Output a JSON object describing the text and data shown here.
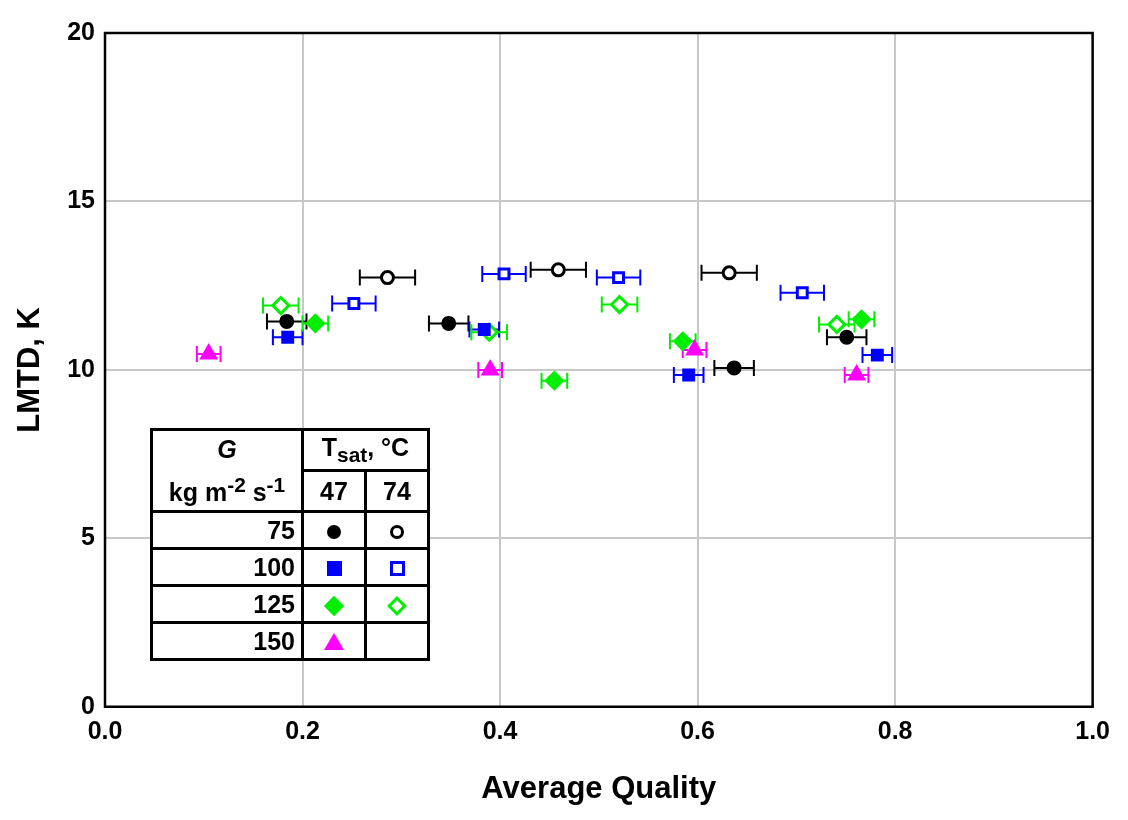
{
  "chart_data": {
    "type": "scatter",
    "xlabel": "Average Quality",
    "ylabel": "LMTD, K",
    "xlim": [
      0,
      1
    ],
    "xticks": [
      {
        "value": 0,
        "label": "0.0"
      },
      {
        "value": 0.2,
        "label": "0.2"
      },
      {
        "value": 0.4,
        "label": "0.4"
      },
      {
        "value": 0.6,
        "label": "0.6"
      },
      {
        "value": 0.8,
        "label": "0.8"
      },
      {
        "value": 1,
        "label": "1.0"
      }
    ],
    "ylim": [
      0,
      20
    ],
    "yticks": [
      0,
      5,
      10,
      15,
      20
    ],
    "grid": true,
    "annotations": [
      "G",
      "kg m$^{-2}$ s$^{-1}$",
      "T$_{sat}$, °C",
      "47",
      "74",
      "75",
      "100",
      "125",
      "150"
    ],
    "series": [
      {
        "color": "#000000",
        "marker": "circle",
        "x": [
          0.184,
          0.348,
          0.637,
          0.751
        ],
        "values": [
          11.44,
          11.38,
          10.06,
          10.97
        ],
        "xerrors": [
          0.02,
          0.02,
          0.02,
          0.02
        ]
      },
      {
        "color": "#000000",
        "marker": "circle-open",
        "x": [
          0.286,
          0.459,
          0.632
        ],
        "values": [
          12.74,
          12.97,
          12.88
        ],
        "xerrors": [
          0.028,
          0.028,
          0.028
        ]
      },
      {
        "color": "#0000ff",
        "marker": "square",
        "x": [
          0.185,
          0.384,
          0.591,
          0.782
        ],
        "values": [
          10.97,
          11.2,
          9.85,
          10.44
        ],
        "xerrors": [
          0.015,
          0.015,
          0.015,
          0.015
        ]
      },
      {
        "color": "#0000ff",
        "marker": "square-open",
        "x": [
          0.252,
          0.404,
          0.52,
          0.706
        ],
        "values": [
          11.97,
          12.85,
          12.74,
          12.29
        ],
        "xerrors": [
          0.022,
          0.022,
          0.022,
          0.022
        ]
      },
      {
        "color": "#00ee00",
        "marker": "diamond",
        "x": [
          0.213,
          0.455,
          0.585,
          0.766
        ],
        "values": [
          11.38,
          9.68,
          10.85,
          11.5
        ],
        "xerrors": [
          0.013,
          0.013,
          0.013,
          0.013
        ]
      },
      {
        "color": "#00ee00",
        "marker": "diamond-open",
        "x": [
          0.178,
          0.389,
          0.521,
          0.741
        ],
        "values": [
          11.91,
          11.12,
          11.94,
          11.35
        ],
        "xerrors": [
          0.018,
          0.018,
          0.018,
          0.018
        ]
      },
      {
        "color": "#ff00ff",
        "marker": "triangle",
        "x": [
          0.105,
          0.39,
          0.597,
          0.761
        ],
        "values": [
          10.47,
          10.0,
          10.59,
          9.85
        ],
        "xerrors": [
          0.012,
          0.012,
          0.012,
          0.012
        ]
      }
    ]
  }
}
